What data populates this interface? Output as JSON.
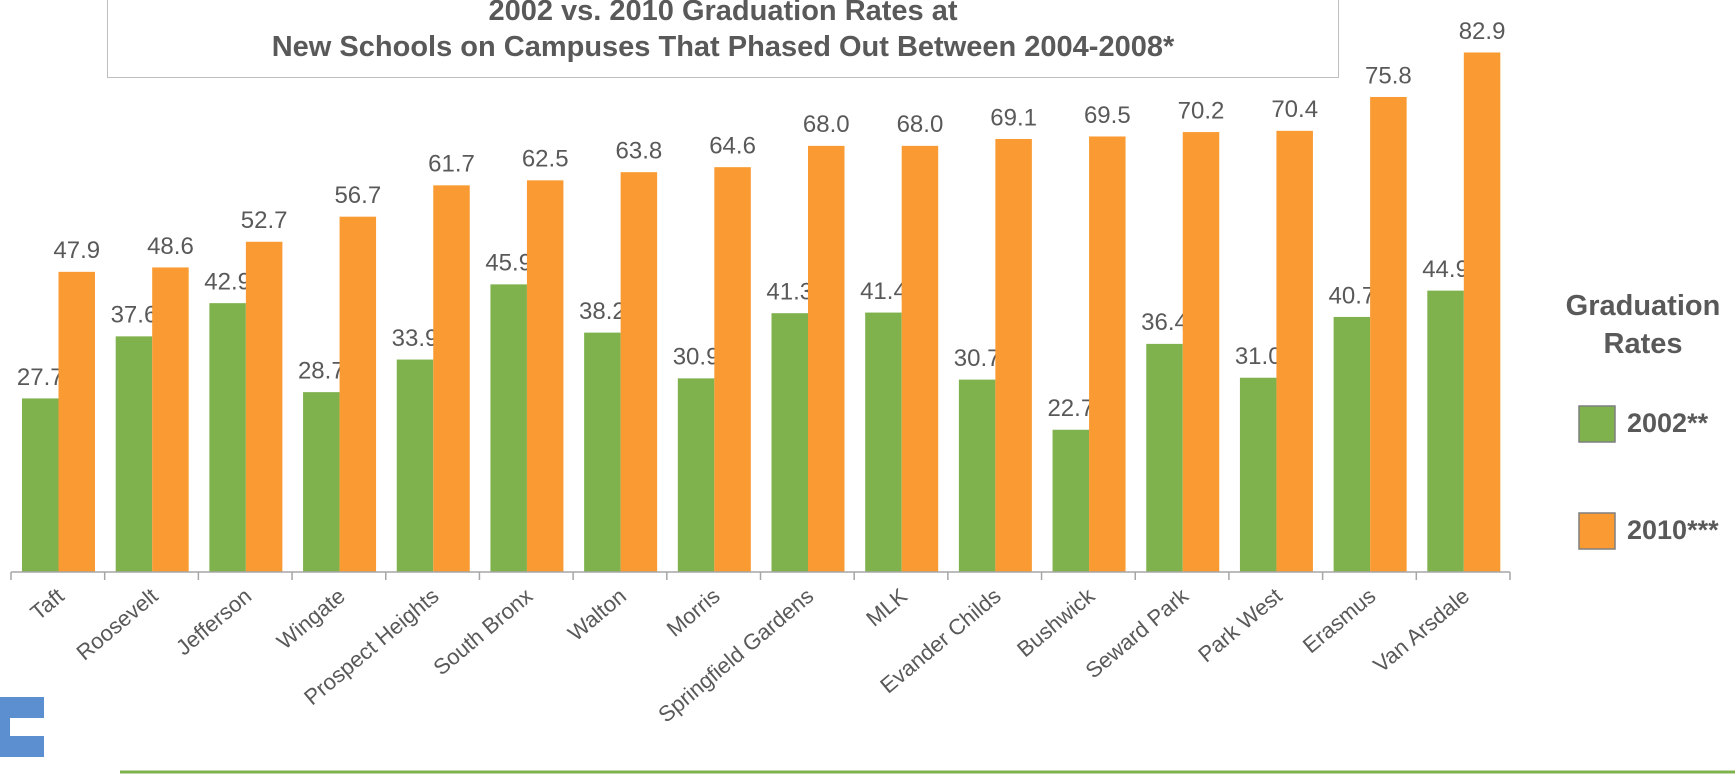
{
  "chart_data": {
    "type": "bar",
    "title": "2002 vs. 2010 Graduation Rates at\nNew Schools on Campuses That Phased Out Between 2004-2008*",
    "categories": [
      "Taft",
      "Roosevelt",
      "Jefferson",
      "Wingate",
      "Prospect Heights",
      "South Bronx",
      "Walton",
      "Morris",
      "Springfield Gardens",
      "MLK",
      "Evander Childs",
      "Bushwick",
      "Seward Park",
      "Park West",
      "Erasmus",
      "Van Arsdale"
    ],
    "series": [
      {
        "name": "2002**",
        "color": "#7fb24c",
        "values": [
          27.7,
          37.6,
          42.9,
          28.7,
          33.9,
          45.9,
          38.2,
          30.9,
          41.3,
          41.4,
          30.7,
          22.7,
          36.4,
          31.0,
          40.7,
          44.9
        ],
        "value_labels": [
          "27.7",
          "37.6",
          "42.9",
          "28.7",
          "33.9",
          "45.9",
          "38.2",
          "30.9",
          "41.3",
          "41.4",
          "30.7",
          "22.7",
          "36.4",
          "31.0",
          "40.7",
          "44.9"
        ]
      },
      {
        "name": "2010***",
        "color": "#f99b32",
        "values": [
          47.9,
          48.6,
          52.7,
          56.7,
          61.7,
          62.5,
          63.8,
          64.6,
          68.0,
          68.0,
          69.1,
          69.5,
          70.2,
          70.4,
          75.8,
          82.9
        ],
        "value_labels": [
          "47.9",
          "48.6",
          "52.7",
          "56.7",
          "61.7",
          "62.5",
          "63.8",
          "64.6",
          "68.0",
          "68.0",
          "69.1",
          "69.5",
          "70.2",
          "70.4",
          "75.8",
          "82.9"
        ]
      }
    ],
    "legend_title": "Graduation Rates",
    "legend": "right",
    "ylim": [
      0,
      90
    ]
  }
}
